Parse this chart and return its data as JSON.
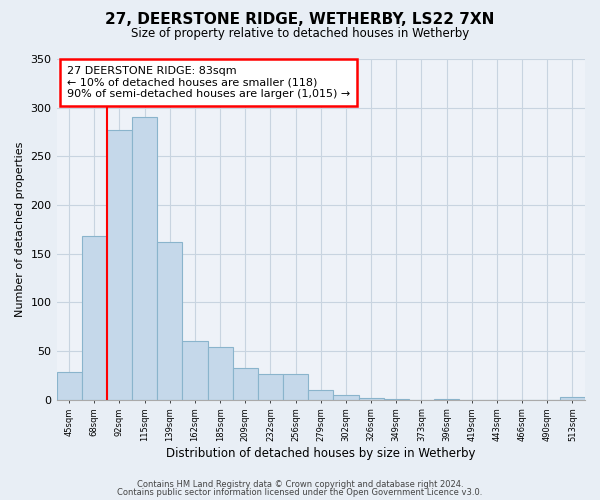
{
  "title": "27, DEERSTONE RIDGE, WETHERBY, LS22 7XN",
  "subtitle": "Size of property relative to detached houses in Wetherby",
  "xlabel": "Distribution of detached houses by size in Wetherby",
  "ylabel": "Number of detached properties",
  "categories": [
    "45sqm",
    "68sqm",
    "92sqm",
    "115sqm",
    "139sqm",
    "162sqm",
    "185sqm",
    "209sqm",
    "232sqm",
    "256sqm",
    "279sqm",
    "302sqm",
    "326sqm",
    "349sqm",
    "373sqm",
    "396sqm",
    "419sqm",
    "443sqm",
    "466sqm",
    "490sqm",
    "513sqm"
  ],
  "values": [
    29,
    168,
    277,
    290,
    162,
    60,
    54,
    33,
    27,
    27,
    10,
    5,
    2,
    1,
    0,
    1,
    0,
    0,
    0,
    0,
    3
  ],
  "bar_color": "#c5d8ea",
  "bar_edge_color": "#8ab4cc",
  "ylim": [
    0,
    350
  ],
  "yticks": [
    0,
    50,
    100,
    150,
    200,
    250,
    300,
    350
  ],
  "red_line_x": 1.5,
  "annotation_line1": "27 DEERSTONE RIDGE: 83sqm",
  "annotation_line2": "← 10% of detached houses are smaller (118)",
  "annotation_line3": "90% of semi-detached houses are larger (1,015) →",
  "footer1": "Contains HM Land Registry data © Crown copyright and database right 2024.",
  "footer2": "Contains public sector information licensed under the Open Government Licence v3.0.",
  "background_color": "#e8eef5",
  "plot_bg_color": "#eef2f8",
  "grid_color": "#c8d4e0"
}
